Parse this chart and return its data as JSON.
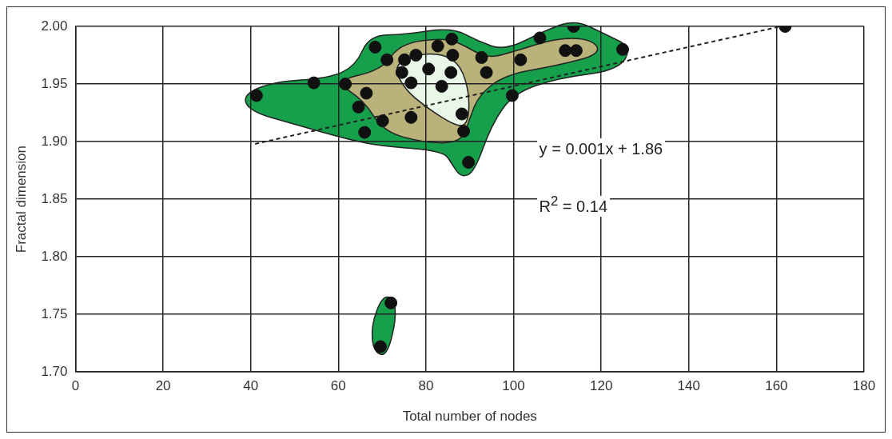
{
  "chart_data": {
    "type": "scatter",
    "xlabel": "Total number of nodes",
    "ylabel": "Fractal dimension",
    "xlim": [
      0,
      180
    ],
    "xticks": [
      0,
      20,
      40,
      60,
      80,
      100,
      120,
      140,
      160,
      180
    ],
    "ylim": [
      1.7,
      2.0
    ],
    "yticks": [
      {
        "value": 1.7,
        "label": "1.70"
      },
      {
        "value": 1.75,
        "label": "1.75"
      },
      {
        "value": 1.8,
        "label": "1.80"
      },
      {
        "value": 1.85,
        "label": "1.85"
      },
      {
        "value": 1.9,
        "label": "1.90"
      },
      {
        "value": 1.95,
        "label": "1.95"
      },
      {
        "value": 2.0,
        "label": "2.00"
      }
    ],
    "grid": true,
    "legend": false,
    "marker": "circle",
    "series": [
      {
        "color": "#111111",
        "x": [
          41.3,
          54.4,
          61.6,
          66.4,
          64.6,
          66.0,
          68.4,
          70.1,
          71.1,
          74.5,
          75.1,
          77.7,
          76.6,
          76.6,
          80.6,
          83.6,
          85.7,
          82.7,
          85.9,
          86.1,
          88.2,
          88.6,
          89.7,
          92.7,
          93.8,
          99.7,
          101.6,
          106.0,
          113.7,
          111.8,
          114.3,
          124.9,
          162,
          72.0,
          69.6
        ],
        "values": [
          1.94,
          1.951,
          1.95,
          1.942,
          1.93,
          1.908,
          1.982,
          1.918,
          1.971,
          1.96,
          1.971,
          1.975,
          1.951,
          1.921,
          1.963,
          1.948,
          1.96,
          1.983,
          1.989,
          1.975,
          1.924,
          1.909,
          1.882,
          1.973,
          1.96,
          1.94,
          1.971,
          1.99,
          2.0,
          1.979,
          1.979,
          1.98,
          2.0,
          1.76,
          1.722
        ]
      },
      {
        "type": "line",
        "color": "#222222",
        "line_style": "dashed",
        "marker": "none",
        "x": [
          41,
          161
        ],
        "values": [
          1.898,
          2.0
        ]
      }
    ],
    "annotations": [
      "y = 0.001x + 1.86",
      "R$^{2}$ = 0.14"
    ]
  }
}
